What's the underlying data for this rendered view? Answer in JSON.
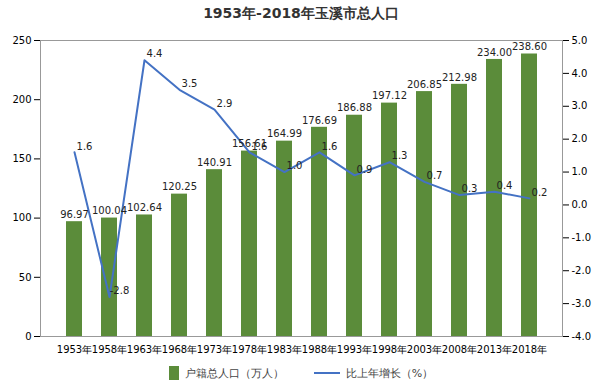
{
  "chart_data": {
    "type": "bar",
    "title": "1953年-2018年玉溪市总人口",
    "categories": [
      "1953年",
      "1958年",
      "1963年",
      "1968年",
      "1973年",
      "1978年",
      "1983年",
      "1988年",
      "1993年",
      "1998年",
      "2003年",
      "2008年",
      "2013年",
      "2018年"
    ],
    "series": [
      {
        "name": "户籍总人口（万人）",
        "type": "bar",
        "color": "#5b8c3a",
        "values": [
          96.97,
          100.04,
          102.64,
          120.25,
          140.91,
          156.61,
          164.99,
          176.69,
          186.88,
          197.12,
          206.85,
          212.98,
          234.0,
          238.6
        ],
        "value_labels": [
          "96.97",
          "100.04",
          "102.64",
          "120.25",
          "140.91",
          "156.61",
          "164.99",
          "176.69",
          "186.88",
          "197.12",
          "206.85",
          "212.98",
          "234.00",
          "238.60"
        ]
      },
      {
        "name": "比上年增长（%）",
        "type": "line",
        "axis": "y2",
        "color": "#4472c4",
        "values": [
          1.6,
          -2.8,
          4.4,
          3.5,
          2.9,
          1.6,
          1.0,
          1.6,
          0.9,
          1.3,
          0.7,
          0.3,
          0.4,
          0.2
        ],
        "value_labels": [
          "1.6",
          "-2.8",
          "4.4",
          "3.5",
          "2.9",
          "1.6",
          "1.0",
          "1.6",
          "0.9",
          "1.3",
          "0.7",
          "0.3",
          "0.4",
          "0.2"
        ]
      }
    ],
    "ylim": [
      0,
      250
    ],
    "yticks": [
      0,
      50,
      100,
      150,
      200,
      250
    ],
    "y2lim": [
      -4,
      5
    ],
    "y2ticks": [
      {
        "value": -4,
        "label": "-4.0"
      },
      {
        "value": -3,
        "label": "-3.0"
      },
      {
        "value": -2,
        "label": "-2.0"
      },
      {
        "value": -1,
        "label": "-1.0"
      },
      {
        "value": 0,
        "label": "0.0"
      },
      {
        "value": 1,
        "label": "1.0"
      },
      {
        "value": 2,
        "label": "2.0"
      },
      {
        "value": 3,
        "label": "3.0"
      },
      {
        "value": 4,
        "label": "4.0"
      },
      {
        "value": 5,
        "label": "5.0"
      }
    ],
    "grid": false,
    "legend": "bottom",
    "data_labels": true
  }
}
